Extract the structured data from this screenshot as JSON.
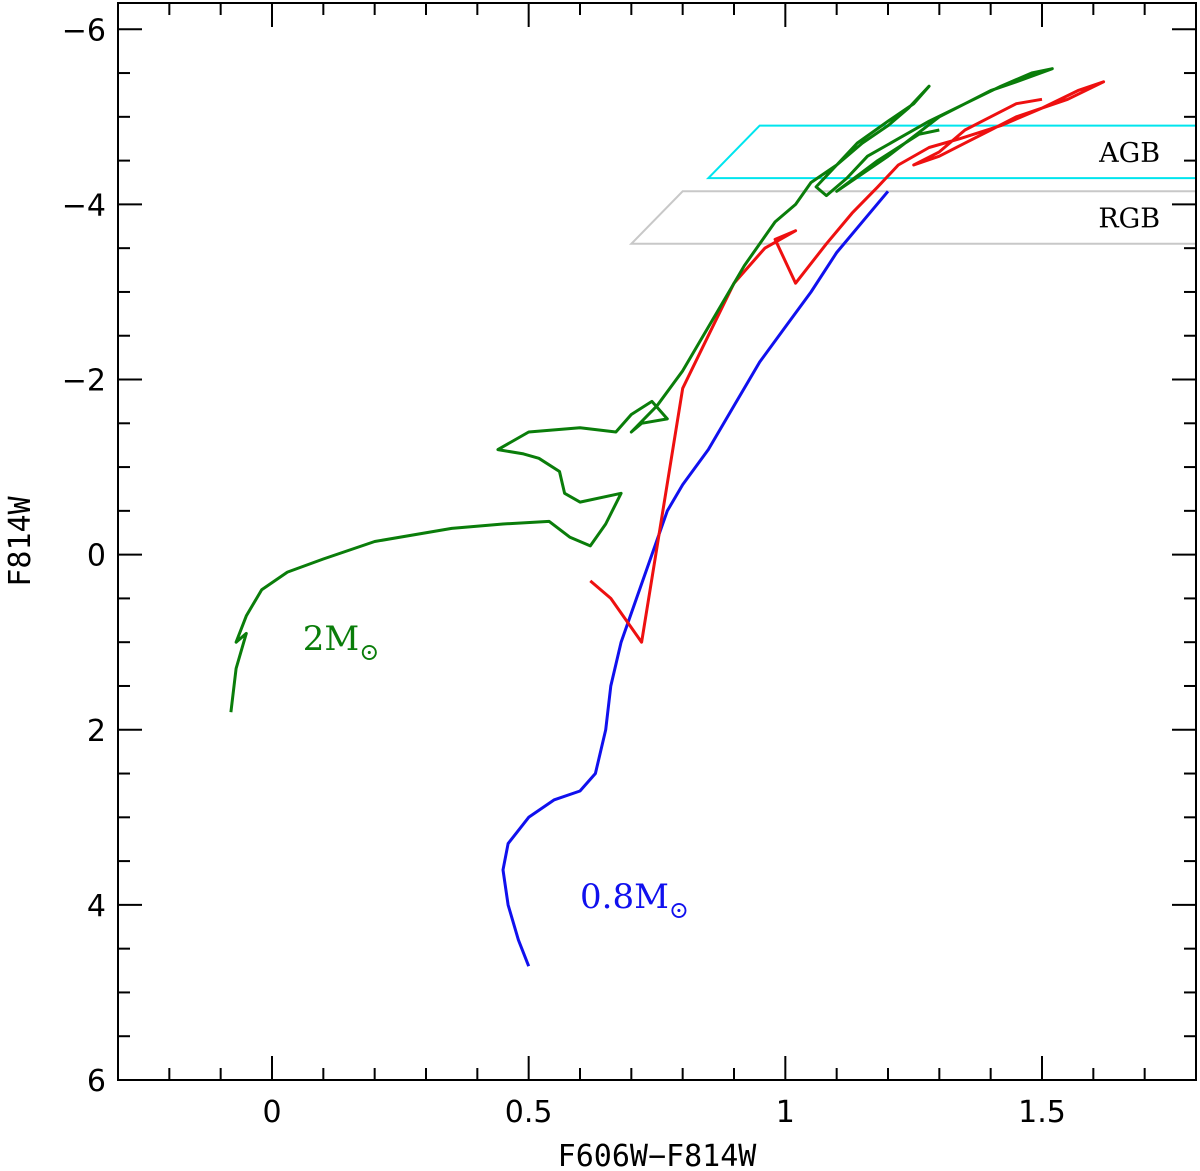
{
  "chart_data": {
    "type": "line",
    "xlabel": "F606W−F814W",
    "ylabel": "F814W",
    "xlim": [
      -0.3,
      1.8
    ],
    "ylim": [
      6,
      -6.3
    ],
    "x_ticks": [
      {
        "value": 0,
        "label": "0"
      },
      {
        "value": 0.5,
        "label": "0.5"
      },
      {
        "value": 1,
        "label": "1"
      },
      {
        "value": 1.5,
        "label": "1.5"
      }
    ],
    "y_ticks": [
      {
        "value": -6,
        "label": "−6"
      },
      {
        "value": -4,
        "label": "−4"
      },
      {
        "value": -2,
        "label": "−2"
      },
      {
        "value": 0,
        "label": "0"
      },
      {
        "value": 2,
        "label": "2"
      },
      {
        "value": 4,
        "label": "4"
      },
      {
        "value": 6,
        "label": "6"
      }
    ],
    "regions": [
      {
        "label": "AGB",
        "color": "#00e5ee",
        "top": -4.9,
        "bottom": -4.3,
        "top_left_x": 0.95,
        "bottom_left_x": 0.85,
        "right_x": 1.8
      },
      {
        "label": "RGB",
        "color": "#c8c8c8",
        "top": -4.15,
        "bottom": -3.55,
        "top_left_x": 0.8,
        "bottom_left_x": 0.7,
        "right_x": 1.8
      }
    ],
    "series": [
      {
        "annotation_main": "0.8M",
        "annotation_symbol": "⊙",
        "color": "#1010ee",
        "label_at": [
          0.6,
          3.9
        ],
        "points": [
          [
            0.5,
            4.7
          ],
          [
            0.48,
            4.4
          ],
          [
            0.46,
            4.0
          ],
          [
            0.45,
            3.6
          ],
          [
            0.46,
            3.3
          ],
          [
            0.5,
            3.0
          ],
          [
            0.55,
            2.8
          ],
          [
            0.6,
            2.7
          ],
          [
            0.63,
            2.5
          ],
          [
            0.65,
            2.0
          ],
          [
            0.66,
            1.5
          ],
          [
            0.68,
            1.0
          ],
          [
            0.71,
            0.5
          ],
          [
            0.74,
            0.0
          ],
          [
            0.77,
            -0.5
          ],
          [
            0.8,
            -0.8
          ],
          [
            0.85,
            -1.2
          ],
          [
            0.9,
            -1.7
          ],
          [
            0.95,
            -2.2
          ],
          [
            1.0,
            -2.6
          ],
          [
            1.05,
            -3.0
          ],
          [
            1.1,
            -3.45
          ],
          [
            1.15,
            -3.8
          ],
          [
            1.2,
            -4.15
          ]
        ]
      },
      {
        "annotation_main": "",
        "annotation_symbol": "",
        "color": "#ee1010",
        "label_at": null,
        "points": [
          [
            0.62,
            0.3
          ],
          [
            0.66,
            0.5
          ],
          [
            0.72,
            1.0
          ],
          [
            0.8,
            -1.9
          ],
          [
            0.85,
            -2.5
          ],
          [
            0.9,
            -3.1
          ],
          [
            0.96,
            -3.5
          ],
          [
            1.02,
            -3.7
          ],
          [
            0.98,
            -3.6
          ],
          [
            1.02,
            -3.1
          ],
          [
            1.08,
            -3.55
          ],
          [
            1.13,
            -3.9
          ],
          [
            1.18,
            -4.2
          ],
          [
            1.22,
            -4.45
          ],
          [
            1.28,
            -4.65
          ],
          [
            1.34,
            -4.75
          ],
          [
            1.42,
            -4.9
          ],
          [
            1.5,
            -5.1
          ],
          [
            1.57,
            -5.3
          ],
          [
            1.62,
            -5.4
          ],
          [
            1.55,
            -5.2
          ],
          [
            1.45,
            -5.0
          ],
          [
            1.4,
            -4.85
          ],
          [
            1.35,
            -4.7
          ],
          [
            1.3,
            -4.55
          ],
          [
            1.25,
            -4.45
          ],
          [
            1.3,
            -4.6
          ],
          [
            1.35,
            -4.85
          ],
          [
            1.4,
            -5.0
          ],
          [
            1.45,
            -5.15
          ],
          [
            1.5,
            -5.2
          ]
        ]
      },
      {
        "annotation_main": "2M",
        "annotation_symbol": "⊙",
        "color": "#0a7d0a",
        "label_at": [
          0.06,
          0.95
        ],
        "points": [
          [
            -0.08,
            1.8
          ],
          [
            -0.07,
            1.3
          ],
          [
            -0.05,
            0.9
          ],
          [
            -0.07,
            1.0
          ],
          [
            -0.05,
            0.7
          ],
          [
            -0.02,
            0.4
          ],
          [
            0.03,
            0.2
          ],
          [
            0.1,
            0.05
          ],
          [
            0.2,
            -0.15
          ],
          [
            0.35,
            -0.3
          ],
          [
            0.45,
            -0.35
          ],
          [
            0.54,
            -0.38
          ],
          [
            0.58,
            -0.2
          ],
          [
            0.62,
            -0.1
          ],
          [
            0.65,
            -0.35
          ],
          [
            0.68,
            -0.7
          ],
          [
            0.6,
            -0.6
          ],
          [
            0.57,
            -0.7
          ],
          [
            0.56,
            -0.95
          ],
          [
            0.52,
            -1.1
          ],
          [
            0.49,
            -1.15
          ],
          [
            0.44,
            -1.2
          ],
          [
            0.5,
            -1.4
          ],
          [
            0.6,
            -1.45
          ],
          [
            0.67,
            -1.4
          ],
          [
            0.7,
            -1.6
          ],
          [
            0.74,
            -1.75
          ],
          [
            0.77,
            -1.55
          ],
          [
            0.72,
            -1.5
          ],
          [
            0.7,
            -1.4
          ],
          [
            0.75,
            -1.7
          ],
          [
            0.8,
            -2.1
          ],
          [
            0.86,
            -2.7
          ],
          [
            0.92,
            -3.3
          ],
          [
            0.98,
            -3.8
          ],
          [
            1.02,
            -4.0
          ],
          [
            1.05,
            -4.25
          ],
          [
            1.1,
            -4.45
          ],
          [
            1.14,
            -4.7
          ],
          [
            1.2,
            -4.95
          ],
          [
            1.25,
            -5.15
          ],
          [
            1.28,
            -5.35
          ],
          [
            1.24,
            -5.1
          ],
          [
            1.2,
            -4.9
          ],
          [
            1.15,
            -4.7
          ],
          [
            1.1,
            -4.45
          ],
          [
            1.06,
            -4.2
          ],
          [
            1.08,
            -4.1
          ],
          [
            1.12,
            -4.3
          ],
          [
            1.16,
            -4.55
          ],
          [
            1.22,
            -4.75
          ],
          [
            1.28,
            -4.95
          ],
          [
            1.35,
            -5.15
          ],
          [
            1.42,
            -5.35
          ],
          [
            1.48,
            -5.5
          ],
          [
            1.52,
            -5.55
          ],
          [
            1.45,
            -5.4
          ],
          [
            1.4,
            -5.3
          ],
          [
            1.3,
            -5.0
          ],
          [
            1.2,
            -4.55
          ],
          [
            1.1,
            -4.15
          ],
          [
            1.18,
            -4.5
          ],
          [
            1.26,
            -4.8
          ],
          [
            1.3,
            -4.85
          ]
        ]
      }
    ]
  }
}
